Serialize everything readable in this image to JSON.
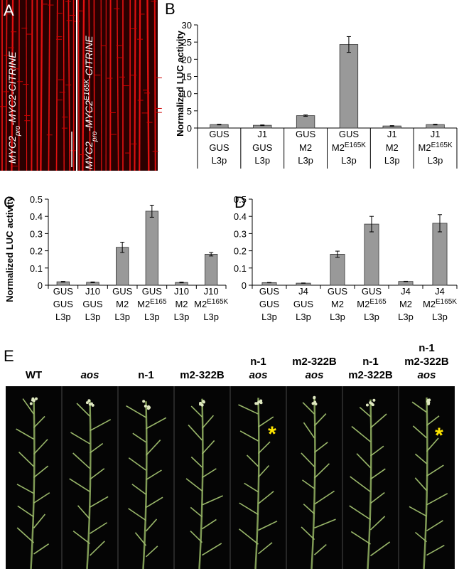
{
  "panel_a": {
    "letter": "A",
    "labels": [
      [
        "MYC2",
        "pro",
        "-MYC2-CITRINE"
      ],
      [
        "MYC2",
        "pro",
        "-MYC2",
        "E165K",
        "-CITRINE"
      ]
    ]
  },
  "chart_data": [
    {
      "type": "bar",
      "panel": "B",
      "y_label": "Normalized LUC activity",
      "categories": [
        [
          "GUS",
          "GUS",
          "L3p"
        ],
        [
          "J1",
          "GUS",
          "L3p"
        ],
        [
          "GUS",
          "M2",
          "L3p"
        ],
        [
          "GUS",
          [
            "M2",
            "E165K"
          ],
          "L3p"
        ],
        [
          "J1",
          "M2",
          "L3p"
        ],
        [
          "J1",
          [
            "M2",
            "E165K"
          ],
          "L3p"
        ]
      ],
      "values": [
        1.0,
        0.8,
        3.6,
        24.3,
        0.6,
        1.0
      ],
      "errors": [
        0.1,
        0.1,
        0.2,
        2.3,
        0.1,
        0.1
      ],
      "color": "#999999",
      "ylim": [
        0,
        30
      ],
      "yticks": [
        0,
        5,
        10,
        15,
        20,
        25,
        30
      ]
    },
    {
      "type": "bar",
      "panel": "C",
      "y_label": "Normalized LUC activity",
      "categories": [
        [
          "GUS",
          "GUS",
          "L3p"
        ],
        [
          "J10",
          "GUS",
          "L3p"
        ],
        [
          "GUS",
          "M2",
          "L3p"
        ],
        [
          "GUS",
          [
            "M2",
            "E165"
          ],
          "L3p"
        ],
        [
          "J10",
          "M2",
          "L3p"
        ],
        [
          "J10",
          [
            "M2",
            "E165K"
          ],
          "L3p"
        ]
      ],
      "values": [
        0.02,
        0.017,
        0.22,
        0.43,
        0.016,
        0.18
      ],
      "errors": [
        0.002,
        0.002,
        0.03,
        0.035,
        0.002,
        0.01
      ],
      "color": "#999999",
      "ylim": [
        0,
        0.5
      ],
      "yticks": [
        0,
        0.1,
        0.2,
        0.3,
        0.4,
        0.5
      ]
    },
    {
      "type": "bar",
      "panel": "D",
      "categories": [
        [
          "GUS",
          "GUS",
          "L3p"
        ],
        [
          "J4",
          "GUS",
          "L3p"
        ],
        [
          "GUS",
          "M2",
          "L3p"
        ],
        [
          "GUS",
          [
            "M2",
            "E165"
          ],
          "L3p"
        ],
        [
          "J4",
          "M2",
          "L3p"
        ],
        [
          "J4",
          [
            "M2",
            "E165K"
          ],
          "L3p"
        ]
      ],
      "values": [
        0.015,
        0.012,
        0.18,
        0.355,
        0.022,
        0.36
      ],
      "errors": [
        0.001,
        0.001,
        0.018,
        0.045,
        0.001,
        0.05
      ],
      "color": "#999999",
      "ylim": [
        0,
        0.5
      ],
      "yticks": [
        0,
        0.1,
        0.2,
        0.3,
        0.4,
        0.5
      ]
    }
  ],
  "panel_e": {
    "letter": "E",
    "labels": [
      [
        "WT"
      ],
      [
        "aos"
      ],
      [
        "n-1"
      ],
      [
        "m2-322B"
      ],
      [
        "n-1",
        "aos"
      ],
      [
        "m2-322B",
        "aos"
      ],
      [
        "n-1",
        "m2-322B"
      ],
      [
        "n-1",
        "m2-322B",
        "aos"
      ]
    ],
    "asterisks": [
      "*",
      "*"
    ]
  }
}
